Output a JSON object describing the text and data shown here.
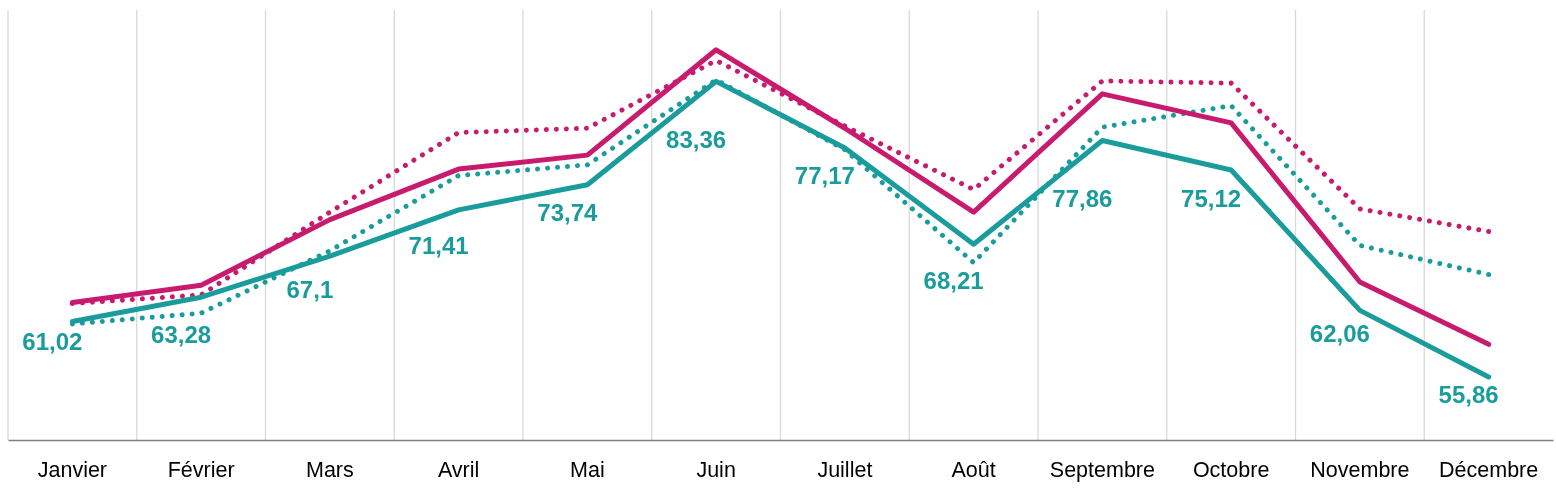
{
  "chart_data": {
    "type": "line",
    "categories": [
      "Janvier",
      "Février",
      "Mars",
      "Avril",
      "Mai",
      "Juin",
      "Juillet",
      "Août",
      "Septembre",
      "Octobre",
      "Novembre",
      "Décembre"
    ],
    "ylim": [
      50,
      90
    ],
    "tick_labels": "x",
    "grid": "x",
    "series": [
      {
        "color": "#1a9c9c",
        "line_style": "dotted",
        "values": [
          60.8,
          61.8,
          67.6,
          74.6,
          75.6,
          83.5,
          77.0,
          66.5,
          79.1,
          81.1,
          68.1,
          65.4
        ]
      },
      {
        "color": "#c81b6e",
        "line_style": "dotted",
        "values": [
          62.7,
          63.5,
          71.2,
          78.6,
          79.0,
          85.3,
          79.2,
          73.3,
          83.4,
          83.2,
          71.5,
          69.4
        ]
      },
      {
        "color": "#c81b6e",
        "line_style": "solid",
        "values": [
          62.8,
          64.4,
          70.5,
          75.2,
          76.5,
          86.3,
          79.0,
          71.2,
          82.2,
          79.5,
          64.7,
          58.9
        ]
      },
      {
        "color": "#1a9c9c",
        "line_style": "solid",
        "values": [
          61.02,
          63.28,
          67.1,
          71.41,
          73.74,
          83.36,
          77.17,
          68.21,
          77.86,
          75.12,
          62.06,
          55.86
        ],
        "value_labels": [
          "61,02",
          "63,28",
          "67,1",
          "71,41",
          "73,74",
          "83,36",
          "77,17",
          "68,21",
          "77,86",
          "75,12",
          "62,06",
          "55,86"
        ]
      }
    ]
  }
}
